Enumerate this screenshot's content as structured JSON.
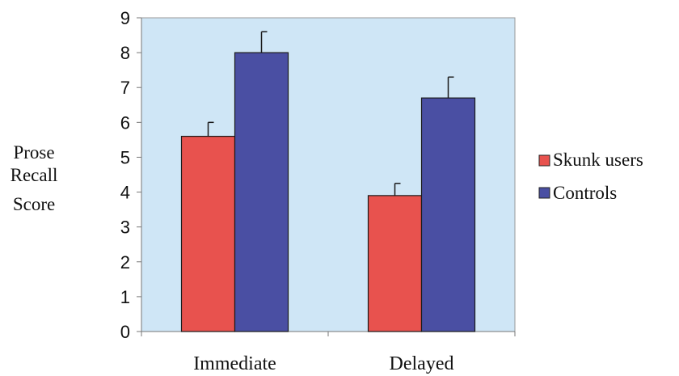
{
  "chart_data": {
    "type": "bar",
    "categories": [
      "Immediate",
      "Delayed"
    ],
    "series": [
      {
        "name": "Skunk users",
        "values": [
          5.6,
          3.9
        ],
        "error": [
          0.4,
          0.35
        ],
        "color": "#e8524e"
      },
      {
        "name": "Controls",
        "values": [
          8.0,
          6.7
        ],
        "error": [
          0.6,
          0.6
        ],
        "color": "#4a4fa3"
      }
    ],
    "ylabel_lines": [
      "Prose",
      "Recall",
      "Score"
    ],
    "ylim": [
      0,
      9
    ],
    "yticks": [
      "0",
      "1",
      "2",
      "3",
      "4",
      "5",
      "6",
      "7",
      "8",
      "9"
    ],
    "plot_background": "#cfe6f6",
    "legend_position": "right"
  }
}
